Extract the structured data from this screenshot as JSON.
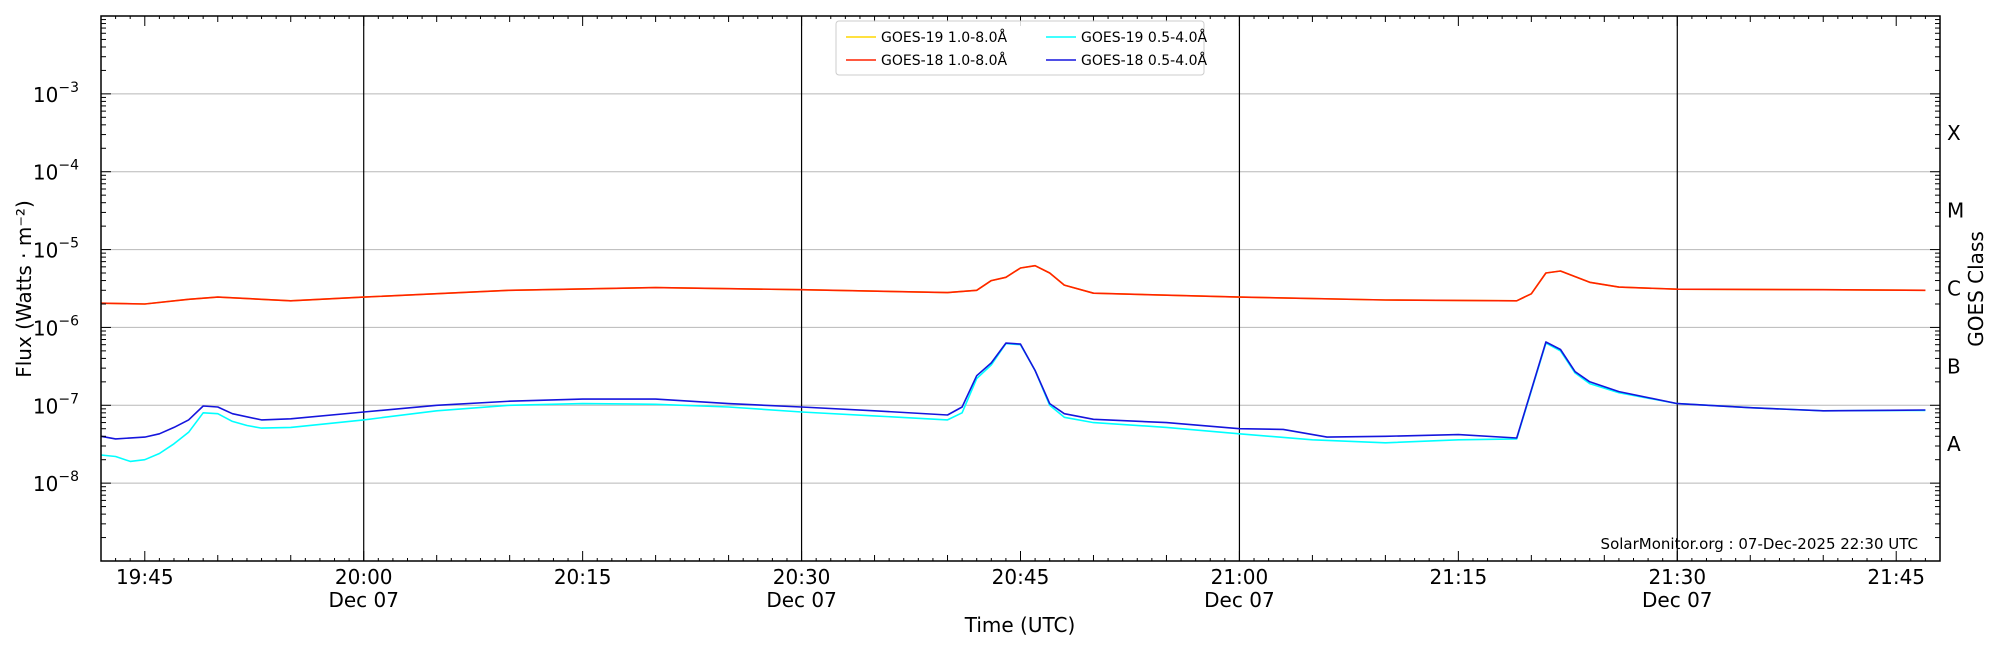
{
  "chart_data": {
    "type": "line",
    "xlabel": "Time (UTC)",
    "ylabel": "Flux (Watts · m⁻²)",
    "ylabel_right": "GOES Class",
    "credit": "SolarMonitor.org : 07-Dec-2025 22:30 UTC",
    "xlim": [
      "19:42",
      "21:48"
    ],
    "ylim": [
      1e-09,
      0.01
    ],
    "y_scale": "log",
    "grid": "horizontal",
    "legend_position": "top-center",
    "x_ticks": [
      {
        "t": "19:45",
        "label": "19:45",
        "sublabel": ""
      },
      {
        "t": "20:00",
        "label": "20:00",
        "sublabel": "Dec 07"
      },
      {
        "t": "20:15",
        "label": "20:15",
        "sublabel": ""
      },
      {
        "t": "20:30",
        "label": "20:30",
        "sublabel": "Dec 07"
      },
      {
        "t": "20:45",
        "label": "20:45",
        "sublabel": ""
      },
      {
        "t": "21:00",
        "label": "21:00",
        "sublabel": "Dec 07"
      },
      {
        "t": "21:15",
        "label": "21:15",
        "sublabel": ""
      },
      {
        "t": "21:30",
        "label": "21:30",
        "sublabel": "Dec 07"
      },
      {
        "t": "21:45",
        "label": "21:45",
        "sublabel": ""
      }
    ],
    "day_lines": [
      "20:00",
      "20:30",
      "21:00",
      "21:30"
    ],
    "y_ticks": [
      {
        "value": 1e-08,
        "base": "10",
        "exp": "−8"
      },
      {
        "value": 1e-07,
        "base": "10",
        "exp": "−7"
      },
      {
        "value": 1e-06,
        "base": "10",
        "exp": "−6"
      },
      {
        "value": 1e-05,
        "base": "10",
        "exp": "−5"
      },
      {
        "value": 0.0001,
        "base": "10",
        "exp": "−4"
      },
      {
        "value": 0.001,
        "base": "10",
        "exp": "−3"
      }
    ],
    "goes_classes": [
      {
        "label": "A",
        "value": 3.16e-08
      },
      {
        "label": "B",
        "value": 3.16e-07
      },
      {
        "label": "C",
        "value": 3.16e-06
      },
      {
        "label": "M",
        "value": 3.16e-05
      },
      {
        "label": "X",
        "value": 0.000316
      }
    ],
    "series": [
      {
        "name": "GOES-19 1.0-8.0Å",
        "color": "#ffd700",
        "points": [
          [
            "19:42",
            2.05e-06
          ],
          [
            "19:45",
            2e-06
          ],
          [
            "19:48",
            2.3e-06
          ],
          [
            "19:50",
            2.45e-06
          ],
          [
            "19:55",
            2.2e-06
          ],
          [
            "20:00",
            2.45e-06
          ],
          [
            "20:10",
            3e-06
          ],
          [
            "20:20",
            3.25e-06
          ],
          [
            "20:30",
            3.05e-06
          ],
          [
            "20:40",
            2.8e-06
          ],
          [
            "20:42",
            3e-06
          ],
          [
            "20:43",
            4e-06
          ],
          [
            "20:44",
            4.4e-06
          ],
          [
            "20:45",
            5.8e-06
          ],
          [
            "20:46",
            6.2e-06
          ],
          [
            "20:47",
            5e-06
          ],
          [
            "20:48",
            3.5e-06
          ],
          [
            "20:50",
            2.75e-06
          ],
          [
            "21:00",
            2.45e-06
          ],
          [
            "21:10",
            2.25e-06
          ],
          [
            "21:19",
            2.2e-06
          ],
          [
            "21:20",
            2.7e-06
          ],
          [
            "21:21",
            5e-06
          ],
          [
            "21:22",
            5.3e-06
          ],
          [
            "21:23",
            4.5e-06
          ],
          [
            "21:24",
            3.8e-06
          ],
          [
            "21:26",
            3.3e-06
          ],
          [
            "21:30",
            3.1e-06
          ],
          [
            "21:40",
            3.05e-06
          ],
          [
            "21:47",
            3e-06
          ]
        ]
      },
      {
        "name": "GOES-18 1.0-8.0Å",
        "color": "#ff2200",
        "points": [
          [
            "19:42",
            2.05e-06
          ],
          [
            "19:45",
            2e-06
          ],
          [
            "19:48",
            2.3e-06
          ],
          [
            "19:50",
            2.45e-06
          ],
          [
            "19:55",
            2.2e-06
          ],
          [
            "20:00",
            2.45e-06
          ],
          [
            "20:10",
            3e-06
          ],
          [
            "20:20",
            3.25e-06
          ],
          [
            "20:30",
            3.05e-06
          ],
          [
            "20:40",
            2.8e-06
          ],
          [
            "20:42",
            3e-06
          ],
          [
            "20:43",
            4e-06
          ],
          [
            "20:44",
            4.4e-06
          ],
          [
            "20:45",
            5.8e-06
          ],
          [
            "20:46",
            6.2e-06
          ],
          [
            "20:47",
            5e-06
          ],
          [
            "20:48",
            3.5e-06
          ],
          [
            "20:50",
            2.75e-06
          ],
          [
            "21:00",
            2.45e-06
          ],
          [
            "21:10",
            2.25e-06
          ],
          [
            "21:19",
            2.2e-06
          ],
          [
            "21:20",
            2.7e-06
          ],
          [
            "21:21",
            5e-06
          ],
          [
            "21:22",
            5.3e-06
          ],
          [
            "21:23",
            4.5e-06
          ],
          [
            "21:24",
            3.8e-06
          ],
          [
            "21:26",
            3.3e-06
          ],
          [
            "21:30",
            3.1e-06
          ],
          [
            "21:40",
            3.05e-06
          ],
          [
            "21:47",
            3e-06
          ]
        ]
      },
      {
        "name": "GOES-19 0.5-4.0Å",
        "color": "#00ffff",
        "points": [
          [
            "19:42",
            2.3e-08
          ],
          [
            "19:43",
            2.2e-08
          ],
          [
            "19:44",
            1.9e-08
          ],
          [
            "19:45",
            2e-08
          ],
          [
            "19:46",
            2.4e-08
          ],
          [
            "19:47",
            3.2e-08
          ],
          [
            "19:48",
            4.5e-08
          ],
          [
            "19:49",
            8e-08
          ],
          [
            "19:50",
            7.8e-08
          ],
          [
            "19:51",
            6.2e-08
          ],
          [
            "19:52",
            5.5e-08
          ],
          [
            "19:53",
            5.1e-08
          ],
          [
            "19:55",
            5.2e-08
          ],
          [
            "20:00",
            6.5e-08
          ],
          [
            "20:05",
            8.5e-08
          ],
          [
            "20:10",
            1e-07
          ],
          [
            "20:15",
            1.05e-07
          ],
          [
            "20:20",
            1.03e-07
          ],
          [
            "20:25",
            9.5e-08
          ],
          [
            "20:30",
            8.2e-08
          ],
          [
            "20:35",
            7.3e-08
          ],
          [
            "20:40",
            6.5e-08
          ],
          [
            "20:41",
            8e-08
          ],
          [
            "20:42",
            2.2e-07
          ],
          [
            "20:43",
            3.3e-07
          ],
          [
            "20:44",
            6.2e-07
          ],
          [
            "20:45",
            6e-07
          ],
          [
            "20:46",
            2.8e-07
          ],
          [
            "20:47",
            1e-07
          ],
          [
            "20:48",
            7e-08
          ],
          [
            "20:50",
            6e-08
          ],
          [
            "20:55",
            5.2e-08
          ],
          [
            "21:00",
            4.3e-08
          ],
          [
            "21:05",
            3.6e-08
          ],
          [
            "21:10",
            3.3e-08
          ],
          [
            "21:15",
            3.6e-08
          ],
          [
            "21:19",
            3.7e-08
          ],
          [
            "21:21",
            6.3e-07
          ],
          [
            "21:22",
            5e-07
          ],
          [
            "21:23",
            2.6e-07
          ],
          [
            "21:24",
            1.9e-07
          ],
          [
            "21:26",
            1.45e-07
          ],
          [
            "21:30",
            1.05e-07
          ],
          [
            "21:35",
            9.3e-08
          ],
          [
            "21:40",
            8.5e-08
          ],
          [
            "21:47",
            8.6e-08
          ]
        ]
      },
      {
        "name": "GOES-18 0.5-4.0Å",
        "color": "#1515dd",
        "points": [
          [
            "19:42",
            4e-08
          ],
          [
            "19:43",
            3.7e-08
          ],
          [
            "19:45",
            3.9e-08
          ],
          [
            "19:46",
            4.3e-08
          ],
          [
            "19:47",
            5.2e-08
          ],
          [
            "19:48",
            6.5e-08
          ],
          [
            "19:49",
            9.8e-08
          ],
          [
            "19:50",
            9.5e-08
          ],
          [
            "19:51",
            7.8e-08
          ],
          [
            "19:53",
            6.5e-08
          ],
          [
            "19:55",
            6.7e-08
          ],
          [
            "20:00",
            8.2e-08
          ],
          [
            "20:05",
            1e-07
          ],
          [
            "20:10",
            1.13e-07
          ],
          [
            "20:15",
            1.2e-07
          ],
          [
            "20:20",
            1.2e-07
          ],
          [
            "20:25",
            1.05e-07
          ],
          [
            "20:30",
            9.5e-08
          ],
          [
            "20:35",
            8.5e-08
          ],
          [
            "20:40",
            7.5e-08
          ],
          [
            "20:41",
            9.5e-08
          ],
          [
            "20:42",
            2.4e-07
          ],
          [
            "20:43",
            3.5e-07
          ],
          [
            "20:44",
            6.3e-07
          ],
          [
            "20:45",
            6.1e-07
          ],
          [
            "20:46",
            2.8e-07
          ],
          [
            "20:47",
            1.05e-07
          ],
          [
            "20:48",
            7.8e-08
          ],
          [
            "20:50",
            6.6e-08
          ],
          [
            "20:55",
            6e-08
          ],
          [
            "21:00",
            5e-08
          ],
          [
            "21:03",
            4.9e-08
          ],
          [
            "21:06",
            3.9e-08
          ],
          [
            "21:10",
            4e-08
          ],
          [
            "21:15",
            4.2e-08
          ],
          [
            "21:19",
            3.8e-08
          ],
          [
            "21:21",
            6.5e-07
          ],
          [
            "21:22",
            5.2e-07
          ],
          [
            "21:23",
            2.7e-07
          ],
          [
            "21:24",
            2e-07
          ],
          [
            "21:26",
            1.5e-07
          ],
          [
            "21:30",
            1.05e-07
          ],
          [
            "21:35",
            9.3e-08
          ],
          [
            "21:40",
            8.5e-08
          ],
          [
            "21:47",
            8.7e-08
          ]
        ]
      }
    ]
  }
}
